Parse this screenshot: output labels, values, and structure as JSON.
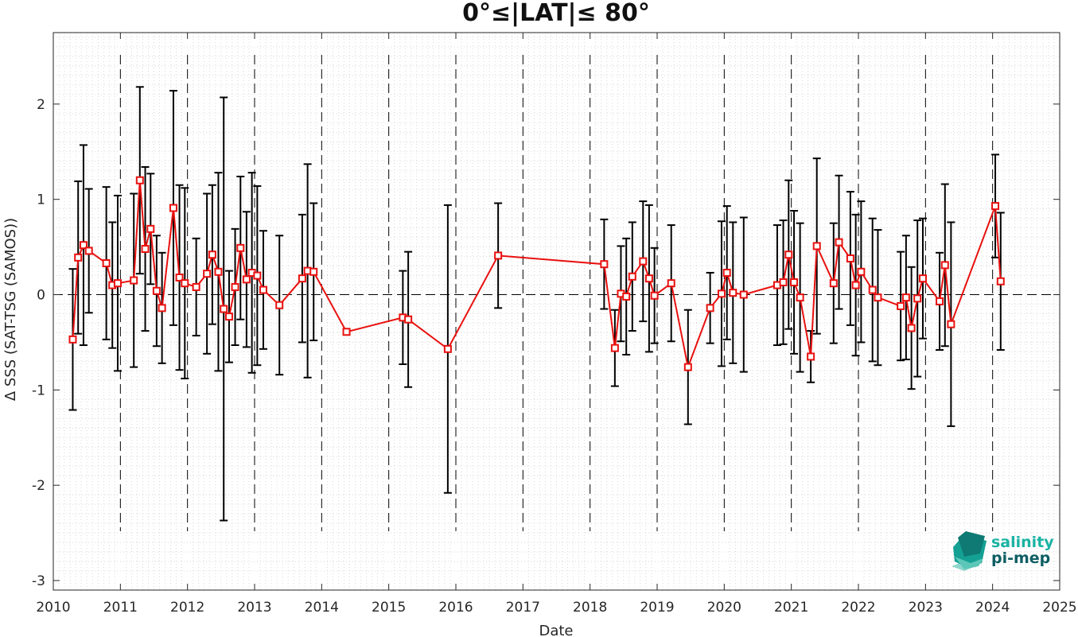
{
  "chart_data": {
    "type": "line",
    "title": "0°≤|LAT|≤ 80°",
    "xlabel": "Date",
    "ylabel": "Δ SSS (SAT-TSG (SAMOS))",
    "x_axis": "date-year",
    "xlim": [
      2010,
      2025
    ],
    "ylim": [
      -3.1,
      2.75
    ],
    "x_ticks": [
      2010,
      2011,
      2012,
      2013,
      2014,
      2015,
      2016,
      2017,
      2018,
      2019,
      2020,
      2021,
      2022,
      2023,
      2024,
      2025
    ],
    "y_ticks": [
      -3,
      -2,
      -1,
      0,
      1,
      2
    ],
    "year_boundaries": [
      2011,
      2012,
      2013,
      2014,
      2015,
      2016,
      2017,
      2018,
      2019,
      2020,
      2021,
      2022,
      2023,
      2024
    ],
    "zero_line": 0,
    "grid": "minor dotted",
    "colors": {
      "series": "#e8110f",
      "errorbar": "#000000"
    },
    "series": [
      {
        "style": "red line with square markers and black error bars",
        "points": [
          {
            "x": 2010.29,
            "y": -0.47,
            "err": 0.74
          },
          {
            "x": 2010.37,
            "y": 0.39,
            "err": 0.8
          },
          {
            "x": 2010.45,
            "y": 0.52,
            "err": 1.05
          },
          {
            "x": 2010.53,
            "y": 0.46,
            "err": 0.65
          },
          {
            "x": 2010.79,
            "y": 0.33,
            "err": 0.8
          },
          {
            "x": 2010.88,
            "y": 0.1,
            "err": 0.66
          },
          {
            "x": 2010.96,
            "y": 0.12,
            "err": 0.92
          },
          {
            "x": 2011.2,
            "y": 0.15,
            "err": 0.91
          },
          {
            "x": 2011.29,
            "y": 1.2,
            "err": 0.98
          },
          {
            "x": 2011.37,
            "y": 0.48,
            "err": 0.86
          },
          {
            "x": 2011.45,
            "y": 0.69,
            "err": 0.58
          },
          {
            "x": 2011.54,
            "y": 0.04,
            "err": 0.58
          },
          {
            "x": 2011.62,
            "y": -0.14,
            "err": 0.58
          },
          {
            "x": 2011.79,
            "y": 0.91,
            "err": 1.23
          },
          {
            "x": 2011.88,
            "y": 0.18,
            "err": 0.97
          },
          {
            "x": 2011.96,
            "y": 0.12,
            "err": 1.0
          },
          {
            "x": 2012.13,
            "y": 0.08,
            "err": 0.51
          },
          {
            "x": 2012.29,
            "y": 0.22,
            "err": 0.84
          },
          {
            "x": 2012.37,
            "y": 0.42,
            "err": 0.73
          },
          {
            "x": 2012.46,
            "y": 0.24,
            "err": 1.04
          },
          {
            "x": 2012.54,
            "y": -0.15,
            "err": 2.22
          },
          {
            "x": 2012.62,
            "y": -0.23,
            "err": 0.48
          },
          {
            "x": 2012.71,
            "y": 0.08,
            "err": 0.61
          },
          {
            "x": 2012.79,
            "y": 0.49,
            "err": 0.75
          },
          {
            "x": 2012.88,
            "y": 0.16,
            "err": 0.71
          },
          {
            "x": 2012.96,
            "y": 0.23,
            "err": 1.05
          },
          {
            "x": 2013.04,
            "y": 0.2,
            "err": 0.94
          },
          {
            "x": 2013.13,
            "y": 0.05,
            "err": 0.62
          },
          {
            "x": 2013.37,
            "y": -0.11,
            "err": 0.73
          },
          {
            "x": 2013.71,
            "y": 0.17,
            "err": 0.67
          },
          {
            "x": 2013.79,
            "y": 0.25,
            "err": 1.12
          },
          {
            "x": 2013.88,
            "y": 0.24,
            "err": 0.72
          },
          {
            "x": 2014.37,
            "y": -0.39,
            "err": 0.0
          },
          {
            "x": 2015.21,
            "y": -0.24,
            "err": 0.49
          },
          {
            "x": 2015.29,
            "y": -0.26,
            "err": 0.71
          },
          {
            "x": 2015.88,
            "y": -0.57,
            "err": 1.51
          },
          {
            "x": 2016.63,
            "y": 0.41,
            "err": 0.55
          },
          {
            "x": 2018.21,
            "y": 0.32,
            "err": 0.47
          },
          {
            "x": 2018.37,
            "y": -0.56,
            "err": 0.4
          },
          {
            "x": 2018.46,
            "y": 0.01,
            "err": 0.5
          },
          {
            "x": 2018.54,
            "y": -0.02,
            "err": 0.61
          },
          {
            "x": 2018.63,
            "y": 0.19,
            "err": 0.57
          },
          {
            "x": 2018.79,
            "y": 0.35,
            "err": 0.63
          },
          {
            "x": 2018.88,
            "y": 0.17,
            "err": 0.77
          },
          {
            "x": 2018.96,
            "y": -0.01,
            "err": 0.5
          },
          {
            "x": 2019.21,
            "y": 0.12,
            "err": 0.61
          },
          {
            "x": 2019.46,
            "y": -0.76,
            "err": 0.6
          },
          {
            "x": 2019.79,
            "y": -0.14,
            "err": 0.37
          },
          {
            "x": 2019.96,
            "y": 0.01,
            "err": 0.76
          },
          {
            "x": 2020.04,
            "y": 0.23,
            "err": 0.7
          },
          {
            "x": 2020.13,
            "y": 0.02,
            "err": 0.74
          },
          {
            "x": 2020.29,
            "y": 0.0,
            "err": 0.81
          },
          {
            "x": 2020.79,
            "y": 0.1,
            "err": 0.63
          },
          {
            "x": 2020.88,
            "y": 0.13,
            "err": 0.65
          },
          {
            "x": 2020.96,
            "y": 0.42,
            "err": 0.78
          },
          {
            "x": 2021.04,
            "y": 0.13,
            "err": 0.75
          },
          {
            "x": 2021.13,
            "y": -0.03,
            "err": 0.78
          },
          {
            "x": 2021.29,
            "y": -0.65,
            "err": 0.27
          },
          {
            "x": 2021.38,
            "y": 0.51,
            "err": 0.92
          },
          {
            "x": 2021.63,
            "y": 0.12,
            "err": 0.63
          },
          {
            "x": 2021.71,
            "y": 0.55,
            "err": 0.7
          },
          {
            "x": 2021.88,
            "y": 0.38,
            "err": 0.7
          },
          {
            "x": 2021.96,
            "y": 0.1,
            "err": 0.74
          },
          {
            "x": 2022.04,
            "y": 0.24,
            "err": 0.74
          },
          {
            "x": 2022.21,
            "y": 0.05,
            "err": 0.75
          },
          {
            "x": 2022.29,
            "y": -0.03,
            "err": 0.71
          },
          {
            "x": 2022.63,
            "y": -0.12,
            "err": 0.57
          },
          {
            "x": 2022.71,
            "y": -0.03,
            "err": 0.65
          },
          {
            "x": 2022.79,
            "y": -0.35,
            "err": 0.64
          },
          {
            "x": 2022.88,
            "y": -0.04,
            "err": 0.82
          },
          {
            "x": 2022.96,
            "y": 0.17,
            "err": 0.63
          },
          {
            "x": 2023.21,
            "y": -0.07,
            "err": 0.51
          },
          {
            "x": 2023.29,
            "y": 0.31,
            "err": 0.85
          },
          {
            "x": 2023.38,
            "y": -0.31,
            "err": 1.07
          },
          {
            "x": 2024.04,
            "y": 0.93,
            "err": 0.54
          },
          {
            "x": 2024.12,
            "y": 0.14,
            "err": 0.72
          }
        ]
      }
    ]
  },
  "logo": {
    "line1": "salinity",
    "line2": "pi-mep",
    "colors": {
      "text1": "#1ab3a3",
      "text2": "#0d5e63"
    }
  }
}
